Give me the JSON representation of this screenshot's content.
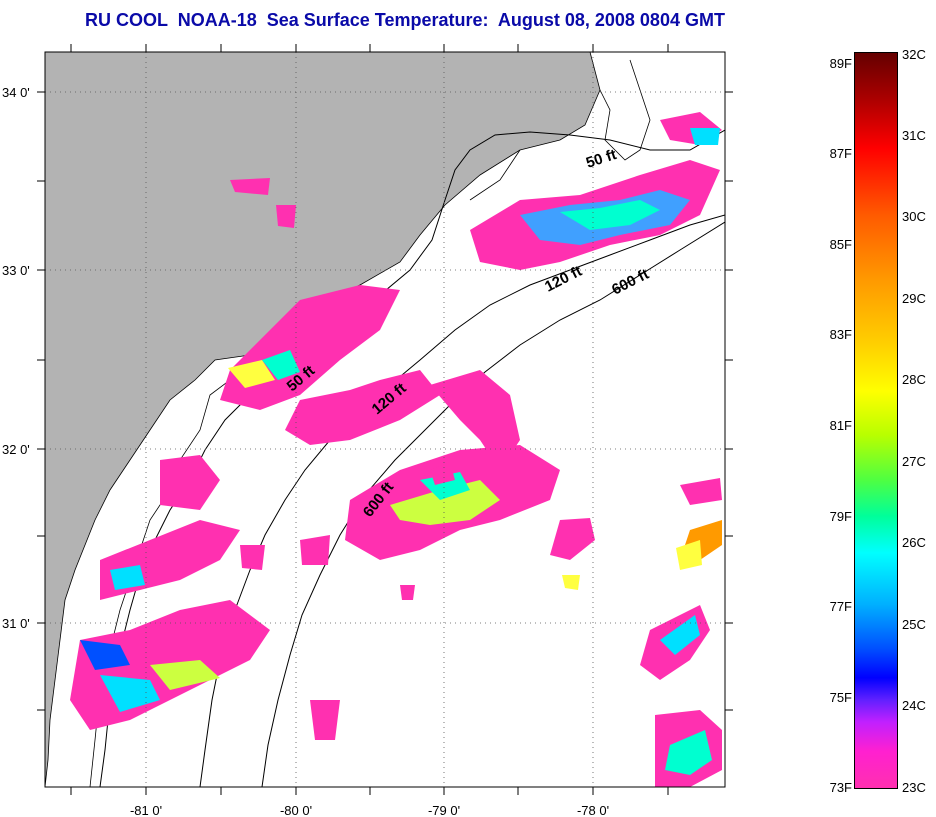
{
  "title": {
    "program": "RU COOL",
    "satellite": "NOAA-18",
    "product": "Sea Surface Temperature:",
    "datetime": "August 08, 2008 0804 GMT"
  },
  "axes": {
    "lat_labels": [
      "34 0'",
      "33 0'",
      "32 0'",
      "31 0'"
    ],
    "lon_labels": [
      "-81 0'",
      "-80 0'",
      "-79 0'",
      "-78 0'"
    ]
  },
  "isobaths": {
    "label_50": "50 ft",
    "label_120": "120 ft",
    "label_600": "600 ft",
    "label_600_alt": "600 ft"
  },
  "colorbar": {
    "fahrenheit": [
      "89F",
      "87F",
      "85F",
      "83F",
      "81F",
      "79F",
      "77F",
      "75F",
      "73F"
    ],
    "celsius": [
      "32C",
      "31C",
      "30C",
      "29C",
      "28C",
      "27C",
      "26C",
      "25C",
      "24C",
      "23C"
    ]
  },
  "colors": {
    "title": "#0a0aa8",
    "land": "#b3b3b3",
    "sst_cool": "#ff30b0",
    "sst_mid": "#00ffff",
    "sst_warm": "#ffff00"
  }
}
